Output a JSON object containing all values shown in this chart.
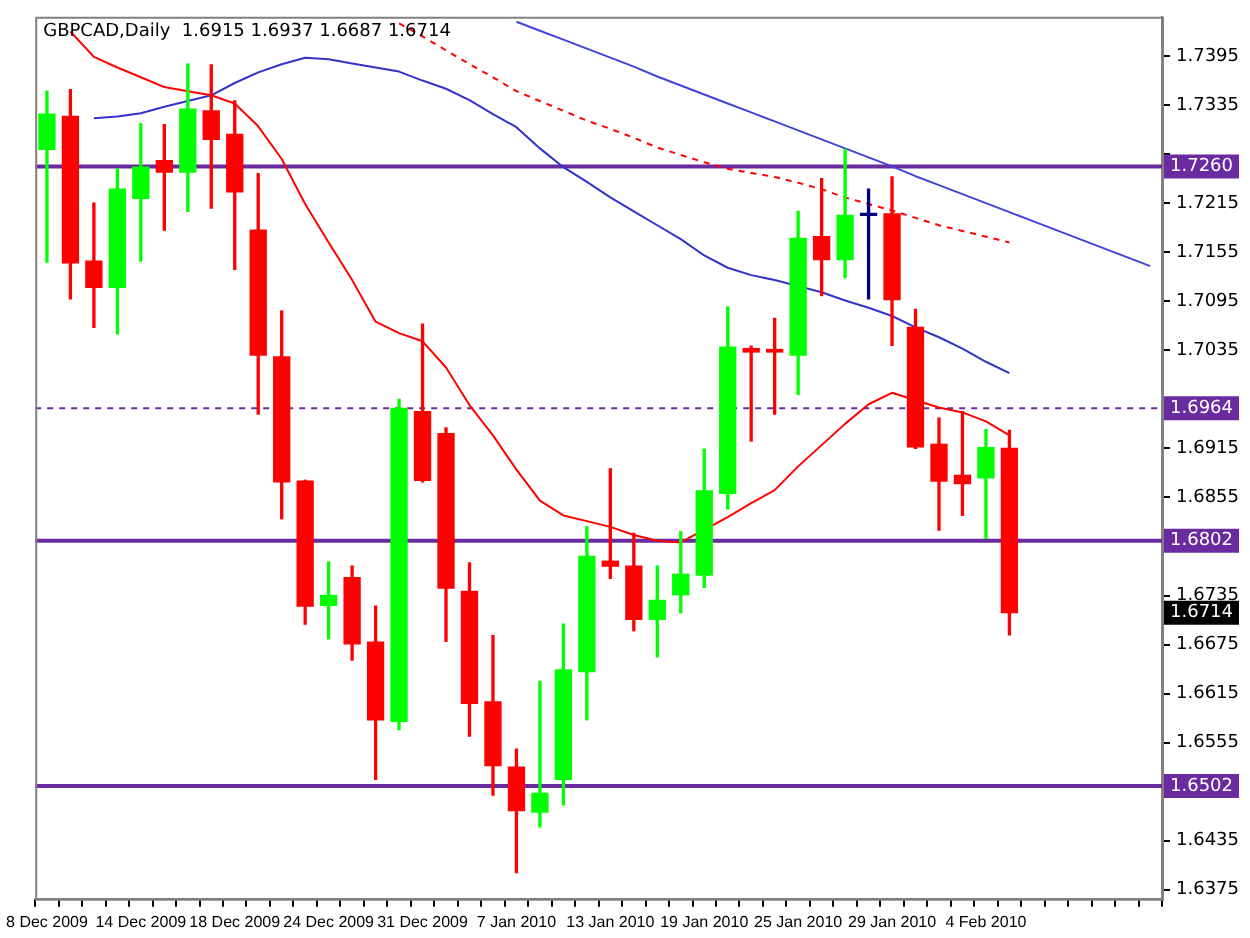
{
  "chart_data": {
    "type": "candlestick",
    "title": "GBPCAD,Daily  1.6915 1.6937 1.6687 1.6714",
    "categories": [
      "8 Dec 2009",
      null,
      null,
      null,
      "14 Dec 2009",
      null,
      null,
      null,
      "18 Dec 2009",
      null,
      null,
      null,
      "24 Dec 2009",
      null,
      null,
      null,
      "31 Dec 2009",
      null,
      null,
      null,
      "7 Jan 2010",
      null,
      null,
      null,
      "13 Jan 2010",
      null,
      null,
      null,
      "19 Jan 2010",
      null,
      null,
      null,
      "25 Jan 2010",
      null,
      null,
      null,
      "29 Jan 2010",
      null,
      null,
      null,
      "4 Feb 2010",
      null,
      null,
      null,
      null,
      null,
      null,
      null
    ],
    "ohlc": [
      [
        1.7281,
        1.7352,
        1.7143,
        1.7324
      ],
      [
        1.7321,
        1.7354,
        1.7098,
        1.7142
      ],
      [
        1.7144,
        1.7215,
        1.7063,
        1.7112
      ],
      [
        1.7112,
        1.7257,
        1.7055,
        1.7232
      ],
      [
        1.7221,
        1.7312,
        1.7144,
        1.7259
      ],
      [
        1.7267,
        1.7311,
        1.7182,
        1.7253
      ],
      [
        1.7253,
        1.7385,
        1.7205,
        1.733
      ],
      [
        1.7328,
        1.7384,
        1.7209,
        1.7293
      ],
      [
        1.7299,
        1.734,
        1.7134,
        1.7229
      ],
      [
        1.7182,
        1.7251,
        1.6957,
        1.7029
      ],
      [
        1.7027,
        1.7083,
        1.6829,
        1.6874
      ],
      [
        1.6875,
        1.6876,
        1.67,
        1.6722
      ],
      [
        1.6723,
        1.6776,
        1.6682,
        1.6735
      ],
      [
        1.6757,
        1.6771,
        1.6656,
        1.6676
      ],
      [
        1.6678,
        1.6722,
        1.651,
        1.6583
      ],
      [
        1.6581,
        1.6975,
        1.6571,
        1.6964
      ],
      [
        1.696,
        1.7067,
        1.6874,
        1.6876
      ],
      [
        1.6933,
        1.694,
        1.6679,
        1.6744
      ],
      [
        1.674,
        1.6775,
        1.6563,
        1.6603
      ],
      [
        1.6605,
        1.6686,
        1.6491,
        1.6527
      ],
      [
        1.6525,
        1.6547,
        1.6396,
        1.6472
      ],
      [
        1.647,
        1.663,
        1.6452,
        1.6493
      ],
      [
        1.651,
        1.67,
        1.6479,
        1.6644
      ],
      [
        1.6642,
        1.6819,
        1.6583,
        1.6783
      ],
      [
        1.6777,
        1.689,
        1.6756,
        1.6771
      ],
      [
        1.6771,
        1.6811,
        1.6692,
        1.6706
      ],
      [
        1.6706,
        1.6771,
        1.666,
        1.6729
      ],
      [
        1.6736,
        1.6813,
        1.6714,
        1.6761
      ],
      [
        1.676,
        1.6914,
        1.6745,
        1.6863
      ],
      [
        1.686,
        1.7088,
        1.6841,
        1.7039
      ],
      [
        1.7037,
        1.704,
        1.6924,
        1.7033
      ],
      [
        1.7036,
        1.7074,
        1.6957,
        1.7033
      ],
      [
        1.7029,
        1.7205,
        1.6981,
        1.7172
      ],
      [
        1.7174,
        1.7245,
        1.7102,
        1.7146
      ],
      [
        1.7146,
        1.7281,
        1.7124,
        1.72
      ],
      [
        1.72,
        1.7232,
        1.7098,
        1.72
      ],
      [
        1.7202,
        1.7247,
        1.7041,
        1.7097
      ],
      [
        1.7063,
        1.7085,
        1.6915,
        1.6917
      ],
      [
        1.692,
        1.6952,
        1.6815,
        1.6875
      ],
      [
        1.6882,
        1.696,
        1.6833,
        1.6872
      ],
      [
        1.6879,
        1.6938,
        1.6805,
        1.6916
      ],
      [
        1.6915,
        1.6937,
        1.6687,
        1.6714
      ],
      null,
      null,
      null,
      null,
      null,
      null
    ],
    "colors": [
      "#00ff00",
      "#ff0000",
      "#ff0000",
      "#00ff00",
      "#00ff00",
      "#ff0000",
      "#00ff00",
      "#ff0000",
      "#ff0000",
      "#ff0000",
      "#ff0000",
      "#ff0000",
      "#00ff00",
      "#ff0000",
      "#ff0000",
      "#00ff00",
      "#ff0000",
      "#ff0000",
      "#ff0000",
      "#ff0000",
      "#ff0000",
      "#00ff00",
      "#00ff00",
      "#00ff00",
      "#ff0000",
      "#ff0000",
      "#00ff00",
      "#00ff00",
      "#00ff00",
      "#00ff00",
      "#ff0000",
      "#ff0000",
      "#00ff00",
      "#ff0000",
      "#00ff00",
      "#000080",
      "#ff0000",
      "#ff0000",
      "#ff0000",
      "#ff0000",
      "#00ff00",
      "#ff0000",
      null,
      null,
      null,
      null,
      null,
      null
    ],
    "series": [
      {
        "type": "line",
        "color": "#ff0000",
        "line_style": "solid",
        "values": [
          null,
          1.7425,
          1.7394,
          1.7381,
          1.7369,
          1.7357,
          1.7352,
          1.7347,
          1.7337,
          1.7309,
          1.7269,
          1.7214,
          1.7167,
          1.7121,
          1.707,
          1.7056,
          1.7046,
          1.7014,
          1.6968,
          1.6931,
          1.6889,
          1.6851,
          1.6833,
          1.6826,
          1.6819,
          1.6809,
          1.6802,
          1.68,
          null,
          1.6831,
          1.6848,
          1.6864,
          1.6893,
          1.6919,
          1.6945,
          1.6969,
          1.6983,
          1.6974,
          1.6965,
          1.6959,
          1.6948,
          1.6931,
          null,
          null,
          null,
          null,
          null,
          null
        ]
      },
      {
        "type": "line",
        "color": "#3333cc",
        "line_style": "solid",
        "values": [
          null,
          null,
          1.7319,
          1.7321,
          1.7325,
          1.7333,
          1.734,
          1.7347,
          1.7362,
          1.7375,
          1.7385,
          1.7393,
          1.7391,
          1.7386,
          1.7381,
          1.7376,
          1.7365,
          1.7355,
          1.7341,
          1.7324,
          1.7308,
          1.7282,
          1.7259,
          1.7241,
          1.7222,
          1.7205,
          1.7188,
          1.7171,
          1.7151,
          1.7136,
          1.7127,
          1.7121,
          null,
          1.7106,
          1.7096,
          1.7087,
          1.7077,
          1.7063,
          1.7051,
          1.7037,
          1.7021,
          1.7007,
          null,
          null,
          null,
          null,
          null,
          null
        ]
      },
      {
        "type": "line",
        "color": "#ff0000",
        "line_style": "dashed",
        "values": [
          null,
          null,
          null,
          null,
          null,
          null,
          null,
          null,
          null,
          null,
          null,
          null,
          null,
          null,
          null,
          1.7435,
          1.7419,
          1.7402,
          1.7385,
          1.7369,
          1.7352,
          1.734,
          1.7328,
          1.7316,
          1.7306,
          1.7295,
          1.7283,
          1.7274,
          1.7265,
          1.7257,
          1.7252,
          1.7247,
          1.724,
          1.7232,
          1.7222,
          1.7214,
          1.7206,
          1.7197,
          1.7188,
          1.7181,
          1.7174,
          1.7167,
          null,
          null,
          null,
          null,
          null,
          null
        ]
      },
      {
        "type": "line",
        "color": "#4444dd",
        "line_style": "solid",
        "values": [
          null,
          null,
          null,
          null,
          null,
          null,
          null,
          null,
          null,
          null,
          null,
          null,
          null,
          null,
          null,
          null,
          null,
          null,
          null,
          null,
          1.7437,
          1.7426,
          1.7415,
          1.7404,
          1.7393,
          1.7382,
          1.737,
          1.7359,
          1.7348,
          1.7337,
          1.7326,
          1.7315,
          1.7304,
          1.7293,
          1.7282,
          1.7271,
          1.726,
          1.7248,
          1.7237,
          1.7226,
          1.7215,
          1.7204,
          1.7193,
          1.7182,
          1.7171,
          1.716,
          1.7149,
          1.7138
        ]
      }
    ],
    "ylim": [
      1.6364,
      1.7443
    ],
    "yticks": [
      1.6375,
      1.6435,
      {
        "value": 1.6495,
        "label": null
      },
      1.6555,
      1.6615,
      1.6675,
      1.6735,
      {
        "value": 1.6795,
        "label": null
      },
      1.6855,
      1.6915,
      {
        "value": 1.6975,
        "label": null
      },
      1.7035,
      1.7095,
      1.7155,
      1.7215,
      {
        "value": 1.7275,
        "label": null
      },
      1.7335,
      1.7395
    ],
    "ref_lines": [
      {
        "axis": "y",
        "value": 1.726,
        "label": "1.7260",
        "color": "#6a2aa0",
        "line_style": "solid"
      },
      {
        "axis": "y",
        "value": 1.6964,
        "label": "1.6964",
        "color": "#6a2aa0",
        "line_style": "dashed"
      },
      {
        "axis": "y",
        "value": 1.6802,
        "label": "1.6802",
        "color": "#6a2aa0",
        "line_style": "solid"
      },
      {
        "axis": "y",
        "value": 1.6502,
        "label": "1.6502",
        "color": "#6a2aa0",
        "line_style": "solid"
      }
    ],
    "annotations": [
      {
        "text": "1.6714",
        "y": 1.6714
      }
    ]
  }
}
